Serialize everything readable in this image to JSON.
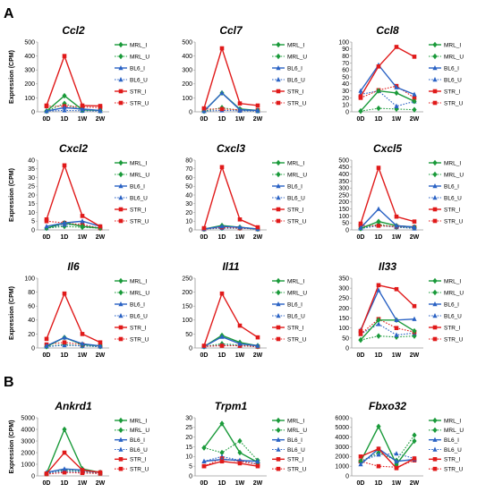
{
  "panels": [
    {
      "label": "A",
      "row": 0
    },
    {
      "label": "B",
      "row": 3
    }
  ],
  "series_styles": [
    {
      "name": "MRL_I",
      "color": "#1a9a3a",
      "dash": false,
      "marker": "diamond"
    },
    {
      "name": "MRL_U",
      "color": "#1a9a3a",
      "dash": true,
      "marker": "diamond"
    },
    {
      "name": "BL6_I",
      "color": "#2a62c4",
      "dash": false,
      "marker": "triangle"
    },
    {
      "name": "BL6_U",
      "color": "#2a62c4",
      "dash": true,
      "marker": "triangle"
    },
    {
      "name": "STR_I",
      "color": "#e01a1a",
      "dash": false,
      "marker": "square"
    },
    {
      "name": "STR_U",
      "color": "#e01a1a",
      "dash": true,
      "marker": "square"
    }
  ],
  "chart_data": [
    {
      "type": "line",
      "title": "Ccl2",
      "ylabel": "Expression (CPM)",
      "x": [
        "0D",
        "1D",
        "1W",
        "2W"
      ],
      "ylim": [
        0,
        500
      ],
      "yticks": [
        0,
        100,
        200,
        300,
        400,
        500
      ],
      "series": [
        {
          "name": "MRL_I",
          "values": [
            5,
            115,
            15,
            10
          ]
        },
        {
          "name": "MRL_U",
          "values": [
            5,
            60,
            10,
            8
          ]
        },
        {
          "name": "BL6_I",
          "values": [
            5,
            30,
            20,
            10
          ]
        },
        {
          "name": "BL6_U",
          "values": [
            5,
            10,
            8,
            5
          ]
        },
        {
          "name": "STR_I",
          "values": [
            45,
            400,
            45,
            42
          ]
        },
        {
          "name": "STR_U",
          "values": [
            40,
            40,
            35,
            30
          ]
        }
      ]
    },
    {
      "type": "line",
      "title": "Ccl7",
      "ylabel": "",
      "x": [
        "0D",
        "1D",
        "1W",
        "2W"
      ],
      "ylim": [
        0,
        500
      ],
      "yticks": [
        0,
        100,
        200,
        300,
        400,
        500
      ],
      "series": [
        {
          "name": "MRL_I",
          "values": [
            5,
            135,
            20,
            10
          ]
        },
        {
          "name": "MRL_U",
          "values": [
            5,
            30,
            10,
            8
          ]
        },
        {
          "name": "BL6_I",
          "values": [
            5,
            135,
            15,
            10
          ]
        },
        {
          "name": "BL6_U",
          "values": [
            5,
            10,
            8,
            5
          ]
        },
        {
          "name": "STR_I",
          "values": [
            25,
            455,
            60,
            45
          ]
        },
        {
          "name": "STR_U",
          "values": [
            20,
            20,
            15,
            12
          ]
        }
      ]
    },
    {
      "type": "line",
      "title": "Ccl8",
      "ylabel": "",
      "x": [
        "0D",
        "1D",
        "1W",
        "2W"
      ],
      "ylim": [
        0,
        100
      ],
      "yticks": [
        0,
        10,
        20,
        30,
        40,
        50,
        60,
        70,
        80,
        90,
        100
      ],
      "series": [
        {
          "name": "MRL_I",
          "values": [
            1,
            30,
            27,
            15
          ]
        },
        {
          "name": "MRL_U",
          "values": [
            1,
            5,
            4,
            3
          ]
        },
        {
          "name": "BL6_I",
          "values": [
            30,
            67,
            35,
            25
          ]
        },
        {
          "name": "BL6_U",
          "values": [
            25,
            30,
            8,
            15
          ]
        },
        {
          "name": "STR_I",
          "values": [
            22,
            65,
            93,
            79
          ]
        },
        {
          "name": "STR_U",
          "values": [
            20,
            31,
            37,
            20
          ]
        }
      ]
    },
    {
      "type": "line",
      "title": "Cxcl2",
      "ylabel": "Expression (CPM)",
      "x": [
        "0D",
        "1D",
        "1W",
        "2W"
      ],
      "ylim": [
        0,
        40
      ],
      "yticks": [
        0,
        5,
        10,
        15,
        20,
        25,
        30,
        35,
        40
      ],
      "series": [
        {
          "name": "MRL_I",
          "values": [
            1,
            4,
            2,
            1
          ]
        },
        {
          "name": "MRL_U",
          "values": [
            1,
            2,
            1.5,
            1
          ]
        },
        {
          "name": "BL6_I",
          "values": [
            2,
            4,
            5,
            2
          ]
        },
        {
          "name": "BL6_U",
          "values": [
            1,
            3,
            3,
            1
          ]
        },
        {
          "name": "STR_I",
          "values": [
            6,
            37,
            8,
            2
          ]
        },
        {
          "name": "STR_U",
          "values": [
            5,
            4,
            3,
            1
          ]
        }
      ]
    },
    {
      "type": "line",
      "title": "Cxcl3",
      "ylabel": "",
      "x": [
        "0D",
        "1D",
        "1W",
        "2W"
      ],
      "ylim": [
        0,
        80
      ],
      "yticks": [
        0,
        10,
        20,
        30,
        40,
        50,
        60,
        70,
        80
      ],
      "series": [
        {
          "name": "MRL_I",
          "values": [
            1,
            5,
            3,
            1
          ]
        },
        {
          "name": "MRL_U",
          "values": [
            1,
            2,
            2,
            1
          ]
        },
        {
          "name": "BL6_I",
          "values": [
            1,
            4,
            3,
            1
          ]
        },
        {
          "name": "BL6_U",
          "values": [
            1,
            2,
            2,
            1
          ]
        },
        {
          "name": "STR_I",
          "values": [
            2,
            72,
            12,
            3
          ]
        },
        {
          "name": "STR_U",
          "values": [
            1,
            3,
            2,
            1
          ]
        }
      ]
    },
    {
      "type": "line",
      "title": "Cxcl5",
      "ylabel": "",
      "x": [
        "0D",
        "1D",
        "1W",
        "2W"
      ],
      "ylim": [
        0,
        500
      ],
      "yticks": [
        0,
        50,
        100,
        150,
        200,
        250,
        300,
        350,
        400,
        450,
        500
      ],
      "series": [
        {
          "name": "MRL_I",
          "values": [
            10,
            60,
            30,
            20
          ]
        },
        {
          "name": "MRL_U",
          "values": [
            10,
            40,
            20,
            15
          ]
        },
        {
          "name": "BL6_I",
          "values": [
            15,
            150,
            30,
            20
          ]
        },
        {
          "name": "BL6_U",
          "values": [
            10,
            30,
            20,
            10
          ]
        },
        {
          "name": "STR_I",
          "values": [
            45,
            445,
            95,
            60
          ]
        },
        {
          "name": "STR_U",
          "values": [
            30,
            30,
            25,
            20
          ]
        }
      ]
    },
    {
      "type": "line",
      "title": "Il6",
      "ylabel": "Expression (CPM)",
      "x": [
        "0D",
        "1D",
        "1W",
        "2W"
      ],
      "ylim": [
        0,
        100
      ],
      "yticks": [
        0,
        20,
        40,
        60,
        80,
        100
      ],
      "series": [
        {
          "name": "MRL_I",
          "values": [
            2,
            15,
            5,
            3
          ]
        },
        {
          "name": "MRL_U",
          "values": [
            2,
            5,
            3,
            2
          ]
        },
        {
          "name": "BL6_I",
          "values": [
            3,
            15,
            6,
            3
          ]
        },
        {
          "name": "BL6_U",
          "values": [
            2,
            4,
            3,
            2
          ]
        },
        {
          "name": "STR_I",
          "values": [
            13,
            78,
            20,
            8
          ]
        },
        {
          "name": "STR_U",
          "values": [
            5,
            8,
            5,
            3
          ]
        }
      ]
    },
    {
      "type": "line",
      "title": "Il11",
      "ylabel": "",
      "x": [
        "0D",
        "1D",
        "1W",
        "2W"
      ],
      "ylim": [
        0,
        250
      ],
      "yticks": [
        0,
        50,
        100,
        150,
        200,
        250
      ],
      "series": [
        {
          "name": "MRL_I",
          "values": [
            5,
            45,
            20,
            8
          ]
        },
        {
          "name": "MRL_U",
          "values": [
            5,
            15,
            10,
            5
          ]
        },
        {
          "name": "BL6_I",
          "values": [
            5,
            40,
            15,
            8
          ]
        },
        {
          "name": "BL6_U",
          "values": [
            5,
            10,
            8,
            5
          ]
        },
        {
          "name": "STR_I",
          "values": [
            8,
            195,
            80,
            38
          ]
        },
        {
          "name": "STR_U",
          "values": [
            6,
            8,
            8,
            5
          ]
        }
      ]
    },
    {
      "type": "line",
      "title": "Il33",
      "ylabel": "",
      "x": [
        "0D",
        "1D",
        "1W",
        "2W"
      ],
      "ylim": [
        0,
        350
      ],
      "yticks": [
        0,
        50,
        100,
        150,
        200,
        250,
        300,
        350
      ],
      "series": [
        {
          "name": "MRL_I",
          "values": [
            40,
            140,
            140,
            85
          ]
        },
        {
          "name": "MRL_U",
          "values": [
            40,
            60,
            55,
            60
          ]
        },
        {
          "name": "BL6_I",
          "values": [
            90,
            290,
            140,
            145
          ]
        },
        {
          "name": "BL6_U",
          "values": [
            70,
            120,
            65,
            75
          ]
        },
        {
          "name": "STR_I",
          "values": [
            85,
            315,
            295,
            210
          ]
        },
        {
          "name": "STR_U",
          "values": [
            70,
            145,
            100,
            80
          ]
        }
      ]
    },
    {
      "type": "line",
      "title": "Ankrd1",
      "ylabel": "Expression (CPM)",
      "x": [
        "0D",
        "1D",
        "1W",
        "2W"
      ],
      "ylim": [
        0,
        5000
      ],
      "yticks": [
        0,
        1000,
        2000,
        3000,
        4000,
        5000
      ],
      "series": [
        {
          "name": "MRL_I",
          "values": [
            200,
            4000,
            600,
            300
          ]
        },
        {
          "name": "MRL_U",
          "values": [
            200,
            500,
            400,
            250
          ]
        },
        {
          "name": "BL6_I",
          "values": [
            300,
            600,
            500,
            300
          ]
        },
        {
          "name": "BL6_U",
          "values": [
            250,
            400,
            350,
            250
          ]
        },
        {
          "name": "STR_I",
          "values": [
            200,
            2000,
            500,
            300
          ]
        },
        {
          "name": "STR_U",
          "values": [
            150,
            300,
            250,
            200
          ]
        }
      ]
    },
    {
      "type": "line",
      "title": "Trpm1",
      "ylabel": "",
      "x": [
        "0D",
        "1D",
        "1W",
        "2W"
      ],
      "ylim": [
        0,
        30
      ],
      "yticks": [
        0,
        5,
        10,
        15,
        20,
        25,
        30
      ],
      "series": [
        {
          "name": "MRL_I",
          "values": [
            14.5,
            27,
            12,
            7
          ]
        },
        {
          "name": "MRL_U",
          "values": [
            14.5,
            12,
            18,
            8
          ]
        },
        {
          "name": "BL6_I",
          "values": [
            7.5,
            8.5,
            8,
            7.5
          ]
        },
        {
          "name": "BL6_U",
          "values": [
            7.5,
            10,
            8,
            6
          ]
        },
        {
          "name": "STR_I",
          "values": [
            5,
            7.5,
            6.5,
            5
          ]
        },
        {
          "name": "STR_U",
          "values": [
            5,
            9,
            7.5,
            6
          ]
        }
      ]
    },
    {
      "type": "line",
      "title": "Fbxo32",
      "ylabel": "",
      "x": [
        "0D",
        "1D",
        "1W",
        "2W"
      ],
      "ylim": [
        0,
        6000
      ],
      "yticks": [
        0,
        1000,
        2000,
        3000,
        4000,
        5000,
        6000
      ],
      "series": [
        {
          "name": "MRL_I",
          "values": [
            1500,
            5100,
            1200,
            3600
          ]
        },
        {
          "name": "MRL_U",
          "values": [
            1500,
            2400,
            1600,
            4200
          ]
        },
        {
          "name": "BL6_I",
          "values": [
            1200,
            2800,
            1500,
            1700
          ]
        },
        {
          "name": "BL6_U",
          "values": [
            1500,
            2200,
            2300,
            1800
          ]
        },
        {
          "name": "STR_I",
          "values": [
            2000,
            2800,
            800,
            1800
          ]
        },
        {
          "name": "STR_U",
          "values": [
            1500,
            1000,
            900,
            1600
          ]
        }
      ]
    }
  ]
}
